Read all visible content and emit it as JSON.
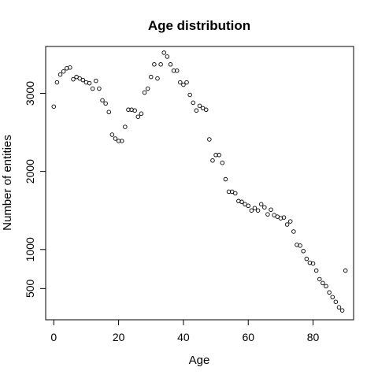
{
  "chart_data": {
    "type": "scatter",
    "title": "Age distribution",
    "xlabel": "Age",
    "ylabel": "Number of entities",
    "xlim": [
      -2.5,
      92.5
    ],
    "ylim": [
      100,
      3600
    ],
    "x_ticks": [
      0,
      20,
      40,
      60,
      80
    ],
    "y_ticks": [
      500,
      1000,
      2000,
      3000
    ],
    "x_tick_labels": [
      "0",
      "20",
      "40",
      "60",
      "80"
    ],
    "y_tick_labels": [
      "500",
      "1000",
      "2000",
      "3000"
    ],
    "grid": false,
    "legend": "none",
    "marker": "open-circle",
    "color": "#000000",
    "points": [
      [
        0,
        2830
      ],
      [
        1,
        3140
      ],
      [
        2,
        3240
      ],
      [
        3,
        3280
      ],
      [
        4,
        3320
      ],
      [
        5,
        3330
      ],
      [
        6,
        3180
      ],
      [
        7,
        3210
      ],
      [
        8,
        3190
      ],
      [
        9,
        3170
      ],
      [
        10,
        3140
      ],
      [
        11,
        3130
      ],
      [
        12,
        3060
      ],
      [
        13,
        3160
      ],
      [
        14,
        3060
      ],
      [
        15,
        2910
      ],
      [
        16,
        2870
      ],
      [
        17,
        2760
      ],
      [
        18,
        2470
      ],
      [
        19,
        2420
      ],
      [
        20,
        2390
      ],
      [
        21,
        2390
      ],
      [
        22,
        2570
      ],
      [
        23,
        2790
      ],
      [
        24,
        2790
      ],
      [
        25,
        2780
      ],
      [
        26,
        2700
      ],
      [
        27,
        2740
      ],
      [
        28,
        3010
      ],
      [
        29,
        3060
      ],
      [
        30,
        3210
      ],
      [
        31,
        3370
      ],
      [
        32,
        3190
      ],
      [
        33,
        3370
      ],
      [
        34,
        3520
      ],
      [
        35,
        3470
      ],
      [
        36,
        3370
      ],
      [
        37,
        3290
      ],
      [
        38,
        3290
      ],
      [
        39,
        3140
      ],
      [
        40,
        3110
      ],
      [
        41,
        3140
      ],
      [
        42,
        2980
      ],
      [
        43,
        2880
      ],
      [
        44,
        2780
      ],
      [
        45,
        2840
      ],
      [
        46,
        2810
      ],
      [
        47,
        2790
      ],
      [
        48,
        2410
      ],
      [
        49,
        2140
      ],
      [
        50,
        2210
      ],
      [
        51,
        2210
      ],
      [
        52,
        2110
      ],
      [
        53,
        1900
      ],
      [
        54,
        1740
      ],
      [
        55,
        1740
      ],
      [
        56,
        1720
      ],
      [
        57,
        1620
      ],
      [
        58,
        1610
      ],
      [
        59,
        1580
      ],
      [
        60,
        1560
      ],
      [
        61,
        1500
      ],
      [
        62,
        1530
      ],
      [
        63,
        1500
      ],
      [
        64,
        1580
      ],
      [
        65,
        1540
      ],
      [
        66,
        1450
      ],
      [
        67,
        1510
      ],
      [
        68,
        1440
      ],
      [
        69,
        1420
      ],
      [
        70,
        1400
      ],
      [
        71,
        1410
      ],
      [
        72,
        1320
      ],
      [
        73,
        1360
      ],
      [
        74,
        1230
      ],
      [
        75,
        1060
      ],
      [
        76,
        1050
      ],
      [
        77,
        980
      ],
      [
        78,
        880
      ],
      [
        79,
        830
      ],
      [
        80,
        820
      ],
      [
        81,
        730
      ],
      [
        82,
        620
      ],
      [
        83,
        570
      ],
      [
        84,
        530
      ],
      [
        85,
        450
      ],
      [
        86,
        390
      ],
      [
        87,
        330
      ],
      [
        88,
        260
      ],
      [
        89,
        220
      ],
      [
        90,
        730
      ]
    ]
  }
}
